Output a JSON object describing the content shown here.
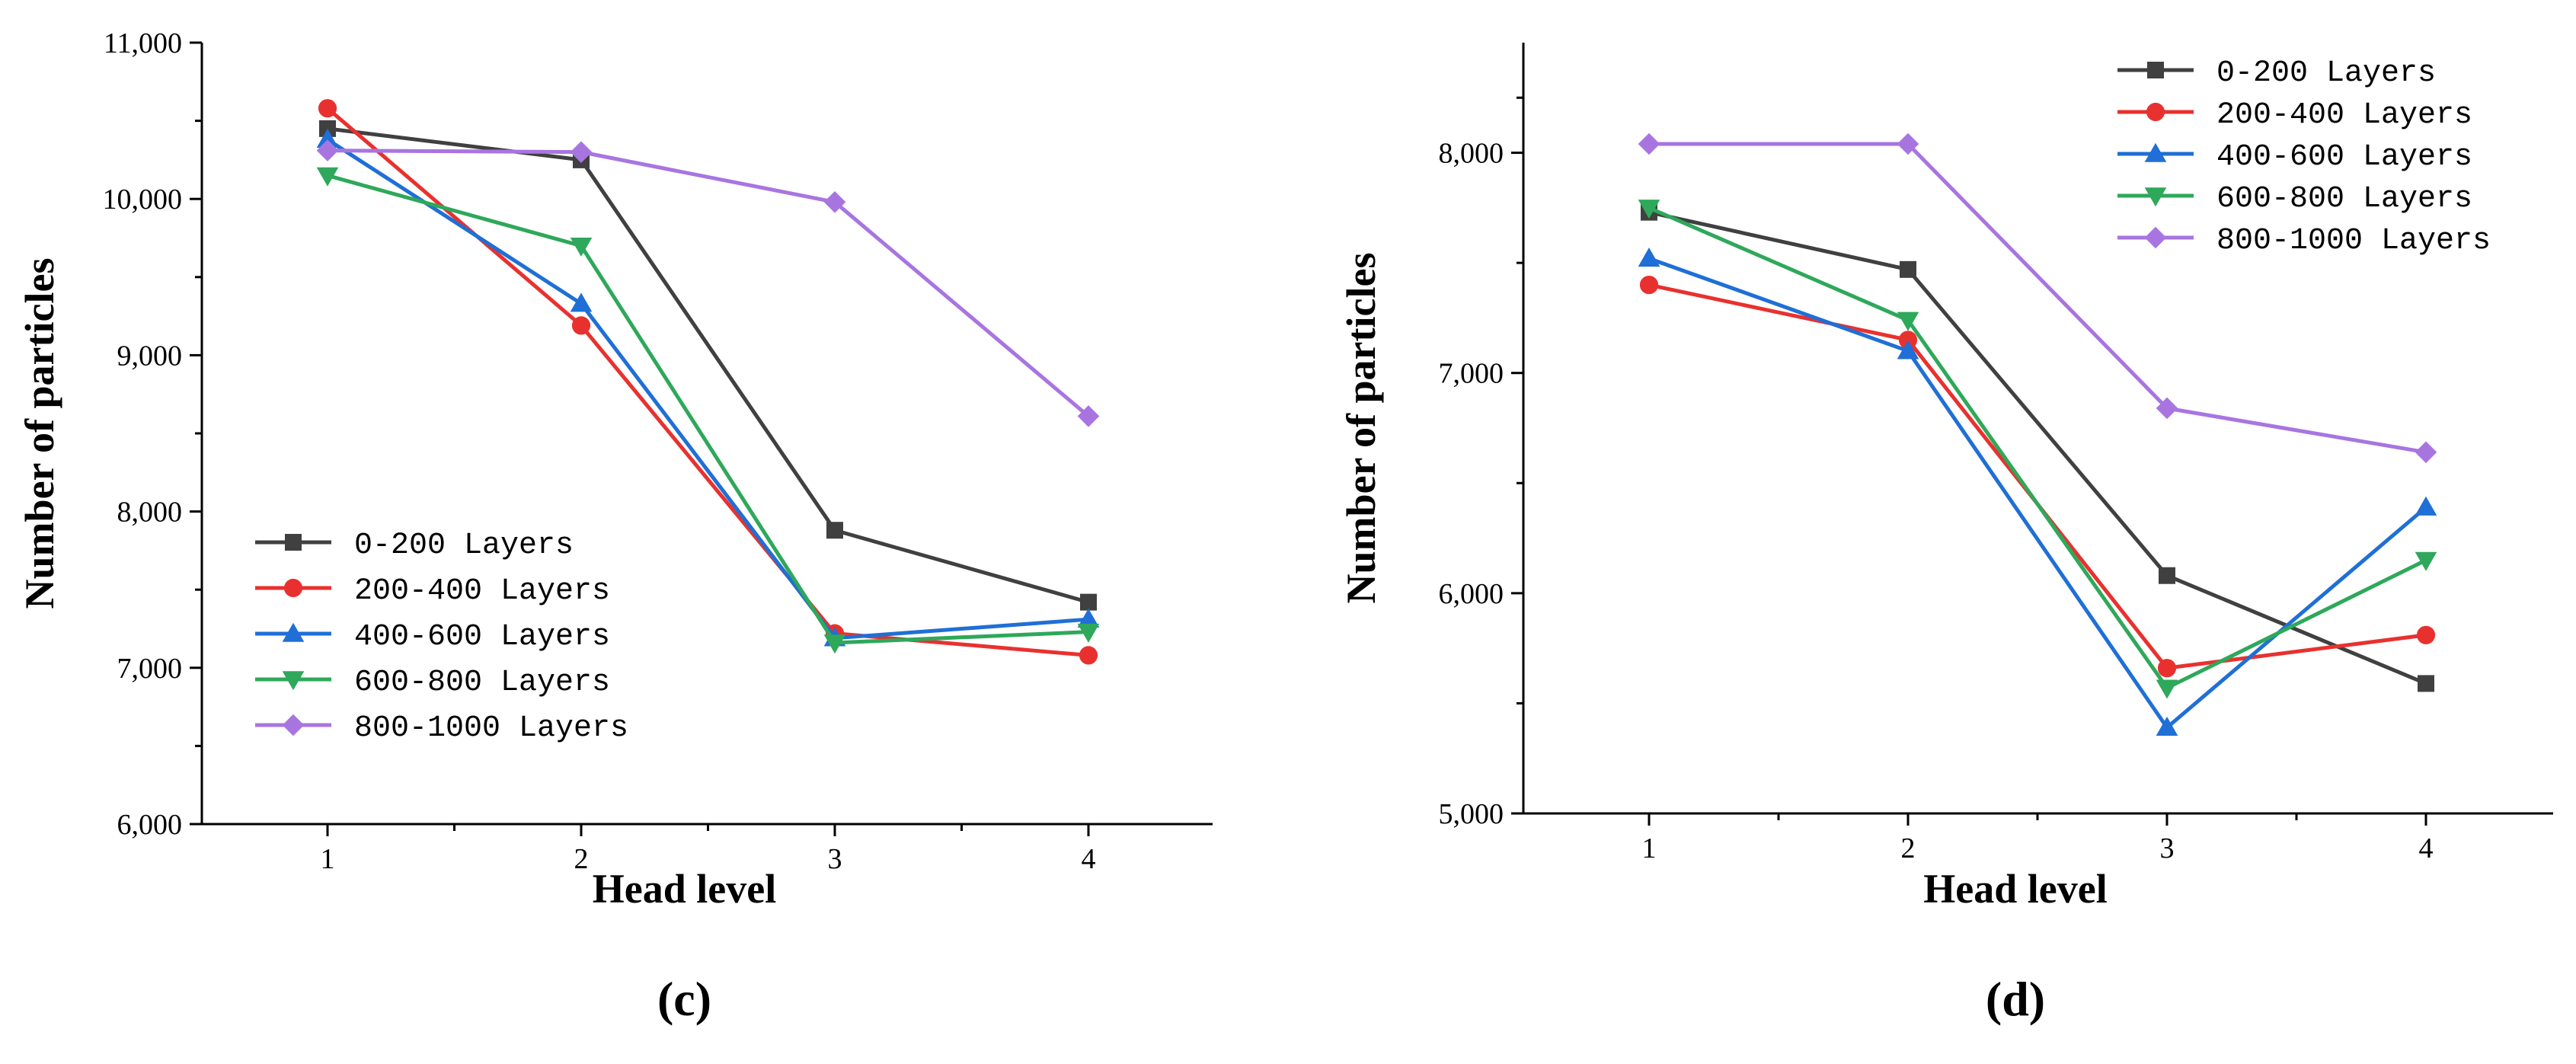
{
  "chart_data": [
    {
      "type": "line",
      "panel_label": "(c)",
      "xlabel": "Head level",
      "ylabel": "Number of particles",
      "x": [
        1,
        2,
        3,
        4
      ],
      "x_tick_labels": [
        "1",
        "2",
        "3",
        "4"
      ],
      "ylim": [
        6000,
        11000
      ],
      "y_ticks": [
        6000,
        7000,
        8000,
        9000,
        10000,
        11000
      ],
      "y_tick_labels": [
        "6,000",
        "7,000",
        "8,000",
        "9,000",
        "10,000",
        "11,000"
      ],
      "legend_position": "lower-left",
      "series": [
        {
          "name": "0-200 Layers",
          "color": "#404040",
          "marker": "square",
          "values": [
            10450,
            10250,
            7880,
            7420
          ]
        },
        {
          "name": "200-400 Layers",
          "color": "#e8312f",
          "marker": "circle",
          "values": [
            10580,
            9190,
            7220,
            7080
          ]
        },
        {
          "name": "400-600 Layers",
          "color": "#1f6fd6",
          "marker": "triangle-up",
          "values": [
            10380,
            9330,
            7190,
            7310
          ]
        },
        {
          "name": "600-800 Layers",
          "color": "#2ea85a",
          "marker": "triangle-down",
          "values": [
            10150,
            9700,
            7160,
            7230
          ]
        },
        {
          "name": "800-1000 Layers",
          "color": "#a875e0",
          "marker": "diamond",
          "values": [
            10310,
            10300,
            9980,
            8610
          ]
        }
      ]
    },
    {
      "type": "line",
      "panel_label": "(d)",
      "xlabel": "Head level",
      "ylabel": "Number of particles",
      "x": [
        1,
        2,
        3,
        4
      ],
      "x_tick_labels": [
        "1",
        "2",
        "3",
        "4"
      ],
      "ylim": [
        5000,
        8500
      ],
      "y_ticks": [
        5000,
        6000,
        7000,
        8000
      ],
      "y_tick_labels": [
        "5,000",
        "6,000",
        "7,000",
        "8,000"
      ],
      "legend_position": "top-right",
      "series": [
        {
          "name": "0-200 Layers",
          "color": "#404040",
          "marker": "square",
          "values": [
            7730,
            7470,
            6080,
            5590
          ]
        },
        {
          "name": "200-400 Layers",
          "color": "#e8312f",
          "marker": "circle",
          "values": [
            7400,
            7150,
            5660,
            5810
          ]
        },
        {
          "name": "400-600 Layers",
          "color": "#1f6fd6",
          "marker": "triangle-up",
          "values": [
            7520,
            7100,
            5390,
            6390
          ]
        },
        {
          "name": "600-800 Layers",
          "color": "#2ea85a",
          "marker": "triangle-down",
          "values": [
            7750,
            7240,
            5570,
            6150
          ]
        },
        {
          "name": "800-1000 Layers",
          "color": "#a875e0",
          "marker": "diamond",
          "values": [
            8040,
            8040,
            6840,
            6640
          ]
        }
      ]
    }
  ]
}
